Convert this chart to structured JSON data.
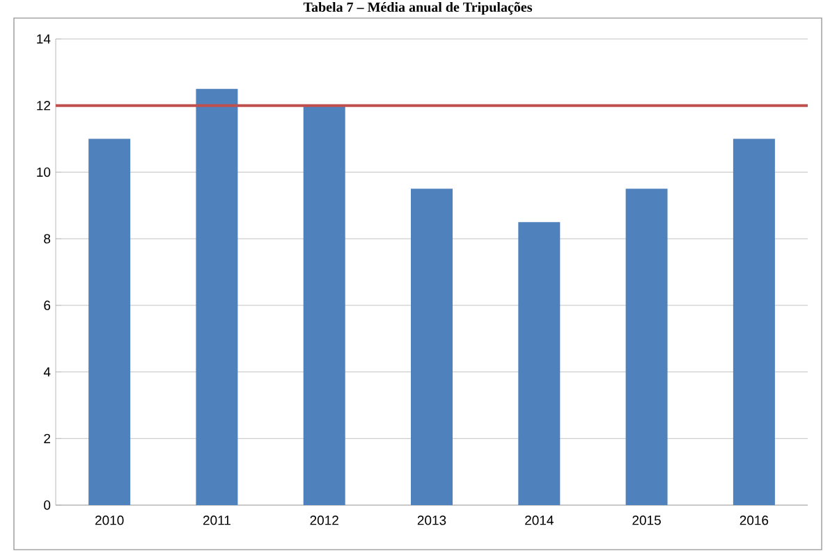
{
  "chart_data": {
    "type": "bar",
    "title": "Tabela 7 – Média anual de Tripulações",
    "categories": [
      "2010",
      "2011",
      "2012",
      "2013",
      "2014",
      "2015",
      "2016"
    ],
    "values": [
      11,
      12.5,
      12,
      9.5,
      8.5,
      9.5,
      11
    ],
    "color": "#4f81bd",
    "ylim": [
      0,
      14
    ],
    "yticks": [
      0,
      2,
      4,
      6,
      8,
      10,
      12,
      14
    ],
    "grid": "y",
    "ref_lines": [
      {
        "axis": "y",
        "value": 12,
        "color": "#c0504d"
      }
    ]
  }
}
